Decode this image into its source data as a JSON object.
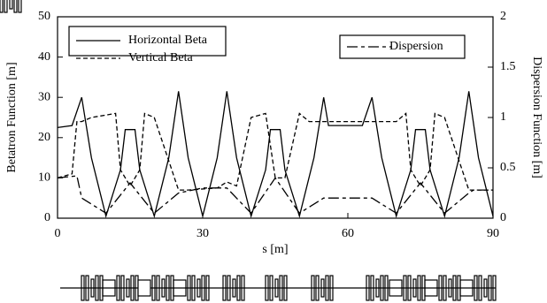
{
  "chart_data": {
    "type": "line",
    "xlabel": "s [m]",
    "ylabel": "Betatron Function [m]",
    "y2label": "Dispersion Function [m]",
    "xlim": [
      0,
      90
    ],
    "xticks": [
      0,
      30,
      60,
      90
    ],
    "ylim": [
      0,
      50
    ],
    "yticks": [
      0,
      10,
      20,
      30,
      40,
      50
    ],
    "y2lim": [
      0,
      2
    ],
    "y2ticks": [
      0,
      0.5,
      1,
      1.5,
      2
    ],
    "series": [
      {
        "name": "Horizontal Beta",
        "color": "#000000",
        "dash": "solid",
        "x": [
          0,
          3,
          5,
          7,
          10,
          13,
          14,
          16,
          17,
          20,
          23,
          25,
          27,
          30,
          33,
          35,
          37,
          40,
          43,
          44,
          46,
          47,
          50,
          53,
          55,
          56,
          63,
          65,
          67,
          70,
          73,
          74,
          76,
          77,
          80,
          83,
          85,
          87,
          90
        ],
        "values": [
          22.5,
          23,
          30,
          15,
          0.5,
          12,
          22,
          22,
          12,
          0.5,
          15,
          31.5,
          15,
          0.5,
          15,
          31.5,
          15,
          0.5,
          12,
          22,
          22,
          12,
          0.5,
          15,
          30,
          23,
          23,
          30,
          15,
          0.5,
          12,
          22,
          22,
          12,
          0.5,
          15,
          31.5,
          15,
          0.5
        ]
      },
      {
        "name": "Vertical Beta",
        "color": "#000000",
        "dash": "dashed",
        "x": [
          0,
          3,
          4,
          5,
          7,
          12,
          13,
          15,
          17,
          18,
          20,
          25,
          27,
          33,
          35,
          37,
          40,
          43,
          45,
          47,
          50,
          52,
          57,
          63,
          65,
          67,
          70,
          72,
          73,
          75,
          77,
          78,
          80,
          85,
          87,
          90
        ],
        "values": [
          10,
          11,
          24,
          24,
          25,
          26,
          12,
          8,
          12,
          26,
          25,
          7,
          7,
          7.5,
          9,
          8,
          25,
          26,
          10,
          10,
          26,
          24,
          24,
          24,
          24,
          24,
          24,
          26,
          12,
          8,
          12,
          26,
          25,
          7,
          7,
          7
        ]
      },
      {
        "name": "Dispersion",
        "color": "#000000",
        "dash": "dashdot",
        "axis": "y2",
        "x": [
          0,
          4,
          5,
          10,
          15,
          20,
          25,
          30,
          35,
          40,
          45,
          50,
          55,
          60,
          65,
          70,
          75,
          80,
          85,
          86,
          90
        ],
        "values": [
          0.4,
          0.42,
          0.2,
          0.05,
          0.35,
          0.05,
          0.25,
          0.3,
          0.3,
          0.05,
          0.4,
          0.05,
          0.2,
          0.2,
          0.2,
          0.05,
          0.35,
          0.05,
          0.25,
          0.28,
          0.28
        ]
      }
    ]
  }
}
